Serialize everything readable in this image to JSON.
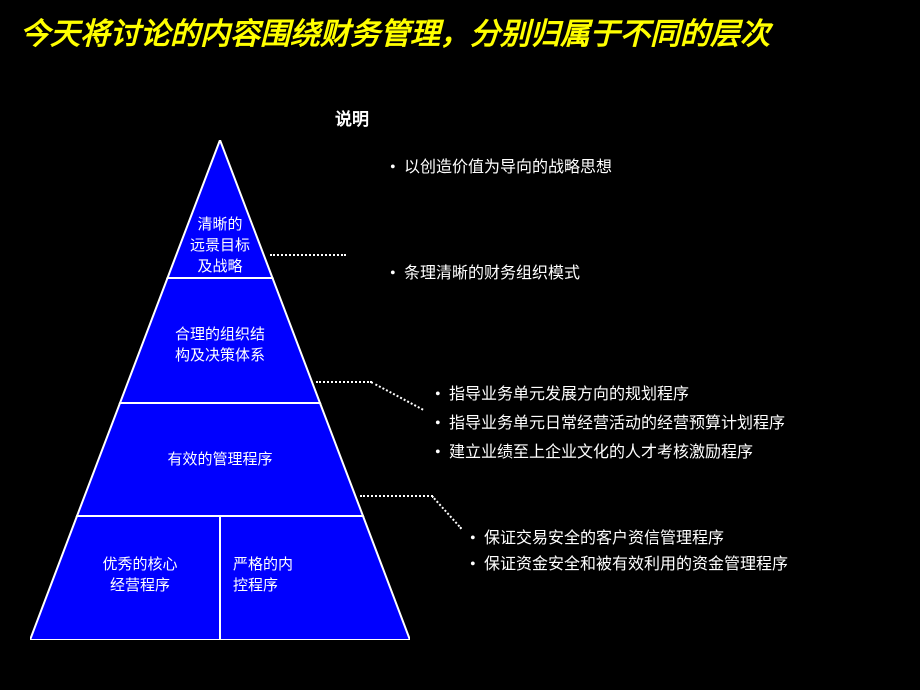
{
  "title": "今天将讨论的内容围绕财务管理，分别归属于不同的层次",
  "explain_header": "说明",
  "colors": {
    "background": "#000000",
    "title_color": "#ffff00",
    "text_color": "#ffffff",
    "pyramid_fill": "#0000ff",
    "pyramid_stroke": "#ffffff",
    "connector_color": "#ffffff"
  },
  "pyramid": {
    "levels": [
      {
        "label": "清晰的\n远景目标\n及战略"
      },
      {
        "label": "合理的组织结\n构及决策体系"
      },
      {
        "label": "有效的管理程序"
      },
      {
        "label_left": "优秀的核心\n经营程序",
        "label_right": "严格的内\n控程序"
      }
    ]
  },
  "bullets": {
    "group1": [
      "以创造价值为导向的战略思想"
    ],
    "group2": [
      "条理清晰的财务组织模式"
    ],
    "group3": [
      "指导业务单元发展方向的规划程序",
      "指导业务单元日常经营活动的经营预算计划程序",
      "建立业绩至上企业文化的人才考核激励程序"
    ],
    "group4": [
      "保证交易安全的客户资信管理程序",
      "保证资金安全和被有效利用的资金管理程序"
    ]
  }
}
